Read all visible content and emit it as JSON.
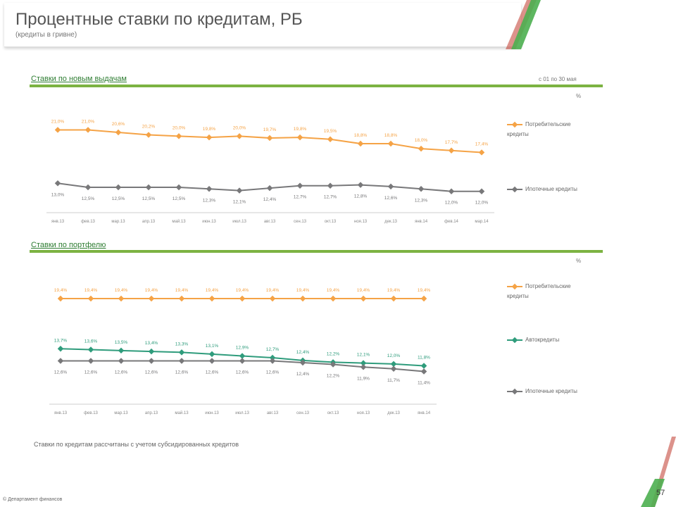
{
  "header": {
    "title": "Процентные ставки по кредитам, РБ",
    "subtitle": "(кредиты в гривне)"
  },
  "colors": {
    "consumer": "#f5a346",
    "mortgage": "#78787a",
    "car": "#2f9c7c",
    "rule": "#7cb342"
  },
  "sections": {
    "new": {
      "title": "Ставки по новым выдачам",
      "unit": "с 01 по 30 мая",
      "pct": "%"
    },
    "portfolio": {
      "title": "Ставки по портфелю",
      "pct": "%"
    }
  },
  "legend": {
    "consumer": "Потребительские кредиты",
    "mortgage": "Ипотечные кредиты",
    "car": "Автокредиты"
  },
  "note": "Ставки по кредитам рассчитаны с учетом субсидированных кредитов",
  "footer": {
    "left": "© Департамент финансов",
    "page": "57"
  },
  "chart_data": [
    {
      "type": "line",
      "categories": [
        "янв.13",
        "фев.13",
        "мар.13",
        "апр.13",
        "май.13",
        "июн.13",
        "июл.13",
        "авг.13",
        "сен.13",
        "окт.13",
        "ноя.13",
        "дек.13",
        "янв.14",
        "фев.14",
        "мар.14"
      ],
      "series": [
        {
          "name": "Потребительские кредиты",
          "color_key": "consumer",
          "values": [
            21.0,
            21.0,
            20.6,
            20.2,
            20.0,
            19.8,
            20.0,
            19.7,
            19.8,
            19.5,
            18.8,
            18.8,
            18.0,
            17.7,
            17.4
          ],
          "labels": [
            "21,0%",
            "21,0%",
            "20,6%",
            "20,2%",
            "20,0%",
            "19,8%",
            "20,0%",
            "19,7%",
            "19,8%",
            "19,5%",
            "18,8%",
            "18,8%",
            "18,0%",
            "17,7%",
            "17,4%"
          ]
        },
        {
          "name": "Ипотечные кредиты",
          "color_key": "mortgage",
          "values": [
            13.0,
            12.5,
            12.5,
            12.5,
            12.5,
            12.3,
            12.1,
            12.4,
            12.7,
            12.7,
            12.8,
            12.6,
            12.3,
            12.0,
            12.0
          ],
          "labels": [
            "13,0%",
            "12,5%",
            "12,5%",
            "12,5%",
            "12,5%",
            "12,3%",
            "12,1%",
            "12,4%",
            "12,7%",
            "12,7%",
            "12,8%",
            "12,6%",
            "12,3%",
            "12,0%",
            "12,0%"
          ]
        }
      ]
    },
    {
      "type": "line",
      "categories": [
        "янв.13",
        "фев.13",
        "мар.13",
        "апр.13",
        "май.13",
        "июн.13",
        "июл.13",
        "авг.13",
        "сен.13",
        "окт.13",
        "ноя.13",
        "дек.13",
        "янв.14"
      ],
      "series": [
        {
          "name": "Потребительские кредиты",
          "color_key": "consumer",
          "values": [
            19.4,
            19.4,
            19.4,
            19.4,
            19.4,
            19.4,
            19.4,
            19.4,
            19.4,
            19.4,
            19.4,
            19.4,
            19.4
          ],
          "labels": [
            "19,4%",
            "19,4%",
            "19,4%",
            "19,4%",
            "19,4%",
            "19,4%",
            "19,4%",
            "19,4%",
            "19,4%",
            "19,4%",
            "19,4%",
            "19,4%",
            "19,4%"
          ]
        },
        {
          "name": "Автокредиты",
          "color_key": "car",
          "values": [
            13.7,
            13.6,
            13.5,
            13.4,
            13.3,
            13.1,
            12.9,
            12.7,
            12.4,
            12.2,
            12.1,
            12.0,
            11.8
          ],
          "labels": [
            "13,7%",
            "13,6%",
            "13,5%",
            "13,4%",
            "13,3%",
            "13,1%",
            "12,9%",
            "12,7%",
            "12,4%",
            "12,2%",
            "12,1%",
            "12,0%",
            "11,8%"
          ]
        },
        {
          "name": "Ипотечные кредиты",
          "color_key": "mortgage",
          "values": [
            12.6,
            12.6,
            12.6,
            12.6,
            12.6,
            12.6,
            12.6,
            12.6,
            12.4,
            12.2,
            11.9,
            11.7,
            11.4
          ],
          "labels": [
            "12,6%",
            "12,6%",
            "12,6%",
            "12,6%",
            "12,6%",
            "12,6%",
            "12,6%",
            "12,6%",
            "12,4%",
            "12,2%",
            "11,9%",
            "11,7%",
            "11,4%"
          ]
        }
      ]
    }
  ]
}
